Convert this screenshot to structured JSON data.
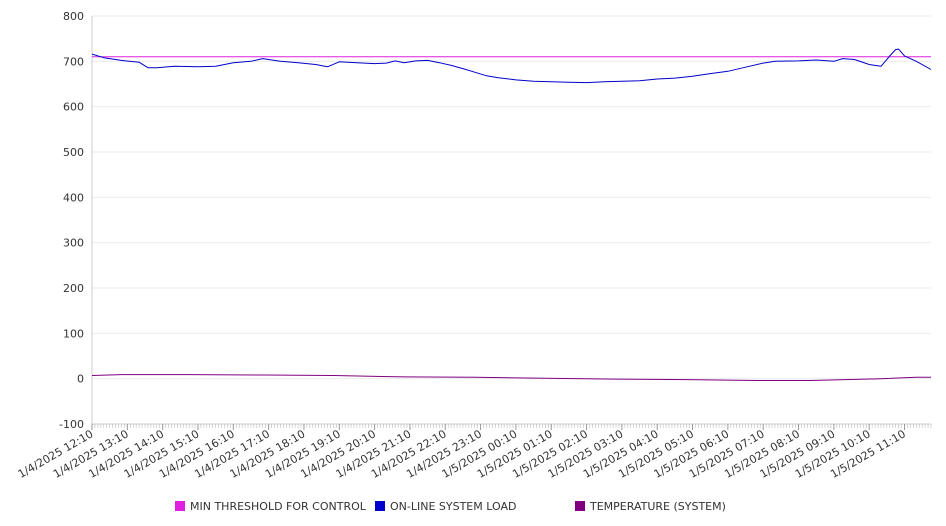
{
  "chart_data": {
    "type": "line",
    "title": "",
    "xlabel": "",
    "ylabel": "",
    "ylim": [
      -100,
      800
    ],
    "yticks": [
      800,
      700,
      600,
      500,
      400,
      300,
      200,
      100,
      0,
      -100
    ],
    "grid": true,
    "legend_placement": "bottom",
    "x_start": "1/4/2025 12:10",
    "x_end": "1/5/2025 11:55",
    "x_tick_labels": [
      "1/4/2025 12:10",
      "1/4/2025 13:10",
      "1/4/2025 14:10",
      "1/4/2025 15:10",
      "1/4/2025 16:10",
      "1/4/2025 17:10",
      "1/4/2025 18:10",
      "1/4/2025 19:10",
      "1/4/2025 20:10",
      "1/4/2025 21:10",
      "1/4/2025 22:10",
      "1/4/2025 23:10",
      "1/5/2025 00:10",
      "1/5/2025 01:10",
      "1/5/2025 02:10",
      "1/5/2025 03:10",
      "1/5/2025 04:10",
      "1/5/2025 05:10",
      "1/5/2025 06:10",
      "1/5/2025 07:10",
      "1/5/2025 08:10",
      "1/5/2025 09:10",
      "1/5/2025 10:10",
      "1/5/2025 11:10"
    ],
    "series": [
      {
        "name": "MIN THRESHOLD FOR CONTROL",
        "color": "#e020e0",
        "points": [
          [
            "1/4/2025 12:10",
            710
          ],
          [
            "1/5/2025 11:55",
            710
          ]
        ]
      },
      {
        "name": "ON-LINE SYSTEM LOAD",
        "color": "#0000cc",
        "points": [
          [
            "1/4/2025 12:10",
            716
          ],
          [
            "1/4/2025 12:30",
            708
          ],
          [
            "1/4/2025 13:00",
            702
          ],
          [
            "1/4/2025 13:30",
            698
          ],
          [
            "1/4/2025 13:45",
            686
          ],
          [
            "1/4/2025 14:00",
            686
          ],
          [
            "1/4/2025 14:30",
            689
          ],
          [
            "1/4/2025 15:10",
            688
          ],
          [
            "1/4/2025 15:40",
            689
          ],
          [
            "1/4/2025 16:10",
            697
          ],
          [
            "1/4/2025 16:40",
            700
          ],
          [
            "1/4/2025 17:00",
            706
          ],
          [
            "1/4/2025 17:30",
            700
          ],
          [
            "1/4/2025 18:00",
            697
          ],
          [
            "1/4/2025 18:30",
            693
          ],
          [
            "1/4/2025 18:50",
            688
          ],
          [
            "1/4/2025 19:10",
            699
          ],
          [
            "1/4/2025 19:40",
            697
          ],
          [
            "1/4/2025 20:10",
            695
          ],
          [
            "1/4/2025 20:30",
            696
          ],
          [
            "1/4/2025 20:45",
            701
          ],
          [
            "1/4/2025 21:00",
            697
          ],
          [
            "1/4/2025 21:20",
            701
          ],
          [
            "1/4/2025 21:40",
            702
          ],
          [
            "1/4/2025 22:00",
            697
          ],
          [
            "1/4/2025 22:20",
            691
          ],
          [
            "1/4/2025 22:40",
            684
          ],
          [
            "1/4/2025 23:00",
            676
          ],
          [
            "1/4/2025 23:20",
            668
          ],
          [
            "1/4/2025 23:40",
            664
          ],
          [
            "1/5/2025 00:10",
            659
          ],
          [
            "1/5/2025 00:40",
            656
          ],
          [
            "1/5/2025 01:10",
            655
          ],
          [
            "1/5/2025 01:40",
            654
          ],
          [
            "1/5/2025 02:10",
            653
          ],
          [
            "1/5/2025 02:40",
            655
          ],
          [
            "1/5/2025 03:10",
            656
          ],
          [
            "1/5/2025 03:40",
            657
          ],
          [
            "1/5/2025 04:10",
            661
          ],
          [
            "1/5/2025 04:40",
            663
          ],
          [
            "1/5/2025 05:10",
            667
          ],
          [
            "1/5/2025 05:40",
            673
          ],
          [
            "1/5/2025 06:10",
            678
          ],
          [
            "1/5/2025 06:40",
            687
          ],
          [
            "1/5/2025 07:10",
            696
          ],
          [
            "1/5/2025 07:30",
            700
          ],
          [
            "1/5/2025 08:10",
            701
          ],
          [
            "1/5/2025 08:40",
            703
          ],
          [
            "1/5/2025 09:10",
            700
          ],
          [
            "1/5/2025 09:25",
            706
          ],
          [
            "1/5/2025 09:45",
            704
          ],
          [
            "1/5/2025 10:10",
            693
          ],
          [
            "1/5/2025 10:30",
            689
          ],
          [
            "1/5/2025 10:45",
            712
          ],
          [
            "1/5/2025 10:55",
            726
          ],
          [
            "1/5/2025 11:00",
            727
          ],
          [
            "1/5/2025 11:10",
            712
          ],
          [
            "1/5/2025 11:30",
            700
          ],
          [
            "1/5/2025 11:55",
            682
          ]
        ]
      },
      {
        "name": "TEMPERATURE (SYSTEM)",
        "color": "#800080",
        "points": [
          [
            "1/4/2025 12:10",
            7
          ],
          [
            "1/4/2025 13:00",
            9
          ],
          [
            "1/4/2025 15:00",
            9
          ],
          [
            "1/4/2025 17:00",
            8
          ],
          [
            "1/4/2025 19:00",
            7
          ],
          [
            "1/4/2025 21:00",
            4
          ],
          [
            "1/4/2025 23:00",
            3
          ],
          [
            "1/5/2025 01:00",
            1
          ],
          [
            "1/5/2025 03:00",
            -1
          ],
          [
            "1/5/2025 05:00",
            -2
          ],
          [
            "1/5/2025 07:00",
            -4
          ],
          [
            "1/5/2025 08:30",
            -4
          ],
          [
            "1/5/2025 09:30",
            -2
          ],
          [
            "1/5/2025 10:30",
            0
          ],
          [
            "1/5/2025 11:30",
            3
          ],
          [
            "1/5/2025 11:55",
            3
          ]
        ]
      }
    ]
  }
}
